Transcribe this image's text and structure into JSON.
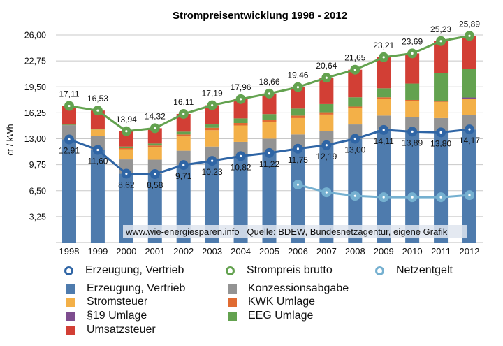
{
  "chart_data": {
    "type": "bar",
    "stacked": true,
    "title": "Strompreisentwicklung 1998 - 2012",
    "xlabel": "",
    "ylabel": "ct / kWh",
    "ylim": [
      0,
      26
    ],
    "yticks": [
      "3,25",
      "6,50",
      "9,75",
      "13,00",
      "16,25",
      "19,50",
      "22,75",
      "26,00"
    ],
    "ytick_values": [
      3.25,
      6.5,
      9.75,
      13.0,
      16.25,
      19.5,
      22.75,
      26.0
    ],
    "grid": true,
    "categories": [
      "1998",
      "1999",
      "2000",
      "2001",
      "2002",
      "2003",
      "2004",
      "2005",
      "2006",
      "2007",
      "2008",
      "2009",
      "2010",
      "2011",
      "2012"
    ],
    "series": [
      {
        "name": "Erzeugung, Vertrieb",
        "kind": "bar",
        "color": "#4e7bad",
        "values": [
          12.91,
          11.6,
          8.62,
          8.58,
          9.71,
          10.23,
          10.82,
          11.22,
          11.75,
          12.19,
          13.0,
          14.11,
          13.89,
          13.8,
          14.17
        ]
      },
      {
        "name": "Konzessionsabgabe",
        "kind": "bar",
        "color": "#939393",
        "values": [
          1.79,
          1.79,
          1.79,
          1.79,
          1.79,
          1.79,
          1.79,
          1.79,
          1.79,
          1.79,
          1.79,
          1.79,
          1.79,
          1.79,
          1.79
        ]
      },
      {
        "name": "Stromsteuer",
        "kind": "bar",
        "color": "#f3b048",
        "values": [
          0.0,
          0.77,
          1.28,
          1.53,
          1.79,
          2.05,
          2.05,
          2.05,
          2.05,
          2.05,
          2.05,
          2.05,
          2.05,
          2.05,
          2.05
        ]
      },
      {
        "name": "KWK Umlage",
        "kind": "bar",
        "color": "#e06b32",
        "values": [
          0.0,
          0.0,
          0.13,
          0.25,
          0.25,
          0.31,
          0.31,
          0.34,
          0.31,
          0.29,
          0.19,
          0.24,
          0.13,
          0.03,
          0.002
        ]
      },
      {
        "name": "§19 Umlage",
        "kind": "bar",
        "color": "#7e4d8f",
        "values": [
          0,
          0,
          0,
          0,
          0,
          0,
          0,
          0,
          0,
          0,
          0,
          0,
          0,
          0,
          0.15
        ]
      },
      {
        "name": "EEG Umlage",
        "kind": "bar",
        "color": "#63a24f",
        "values": [
          0.08,
          0.1,
          0.2,
          0.25,
          0.35,
          0.41,
          0.58,
          0.69,
          0.88,
          1.02,
          1.16,
          1.13,
          2.05,
          3.53,
          3.59
        ]
      },
      {
        "name": "Umsatzsteuer",
        "kind": "bar",
        "color": "#d23f35",
        "values": [
          2.33,
          2.27,
          1.92,
          1.92,
          2.22,
          2.4,
          2.41,
          2.57,
          2.68,
          3.29,
          3.46,
          3.89,
          3.78,
          4.03,
          4.13
        ]
      }
    ],
    "lines": [
      {
        "name": "Erzeugung, Vertrieb",
        "color": "#2f65a5",
        "labels": true,
        "label_pos": "below",
        "values": [
          12.91,
          11.6,
          8.62,
          8.58,
          9.71,
          10.23,
          10.82,
          11.22,
          11.75,
          12.19,
          13.0,
          14.11,
          13.89,
          13.8,
          14.17
        ],
        "labels_text": [
          "12,91",
          "11,60",
          "8,62",
          "8,58",
          "9,71",
          "10,23",
          "10,82",
          "11,22",
          "11,75",
          "12,19",
          "13,00",
          "14,11",
          "13,89",
          "13,80",
          "14,17"
        ]
      },
      {
        "name": "Strompreis brutto",
        "color": "#63a24f",
        "labels": true,
        "label_pos": "above",
        "values": [
          17.11,
          16.53,
          13.94,
          14.32,
          16.11,
          17.19,
          17.96,
          18.66,
          19.46,
          20.64,
          21.65,
          23.21,
          23.69,
          25.23,
          25.89
        ],
        "labels_text": [
          "17,11",
          "16,53",
          "13,94",
          "14,32",
          "16,11",
          "17,19",
          "17,96",
          "18,66",
          "19,46",
          "20,64",
          "21,65",
          "23,21",
          "23,69",
          "25,23",
          "25,89"
        ]
      },
      {
        "name": "Netzentgelt",
        "color": "#75b0d0",
        "labels": false,
        "start_index": 8,
        "values": [
          7.25,
          6.29,
          5.85,
          5.68,
          5.68,
          5.68,
          5.94
        ]
      }
    ],
    "annotation": "www.wie-energiesparen.info   Quelle: BDEW, Bundesnetzagentur, eigene Grafik",
    "legend_position": "bottom"
  },
  "legend": {
    "line_items": [
      {
        "label": "Erzeugung, Vertrieb",
        "color": "#2f65a5"
      },
      {
        "label": "Strompreis brutto",
        "color": "#63a24f"
      },
      {
        "label": "Netzentgelt",
        "color": "#75b0d0"
      }
    ],
    "bar_items": [
      {
        "label": "Erzeugung, Vertrieb",
        "color": "#4e7bad"
      },
      {
        "label": "Konzessionsabgabe",
        "color": "#939393"
      },
      {
        "label": "Stromsteuer",
        "color": "#f3b048"
      },
      {
        "label": "KWK Umlage",
        "color": "#e06b32"
      },
      {
        "label": "§19 Umlage",
        "color": "#7e4d8f"
      },
      {
        "label": "EEG Umlage",
        "color": "#63a24f"
      },
      {
        "label": "Umsatzsteuer",
        "color": "#d23f35"
      }
    ]
  }
}
